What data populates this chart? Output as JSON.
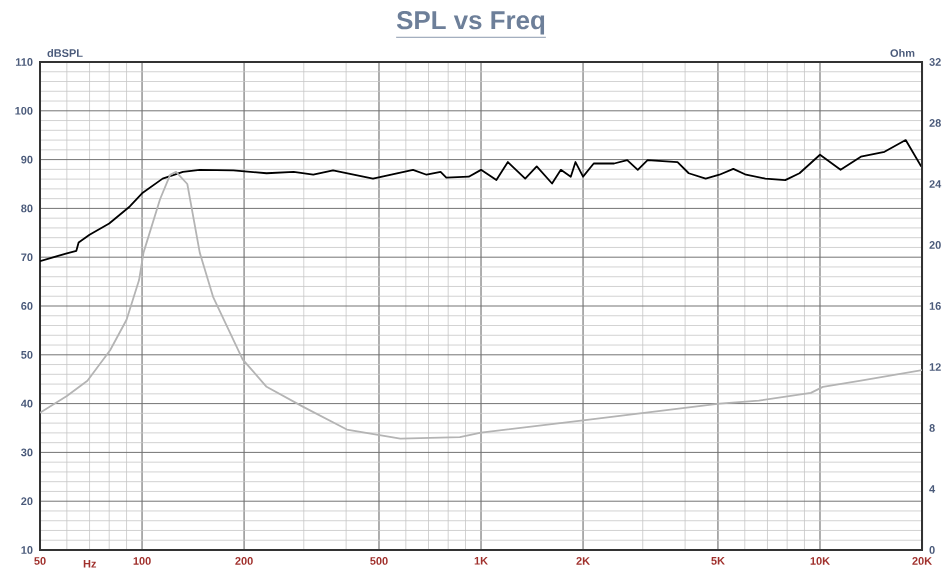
{
  "chart_data": {
    "type": "line",
    "title": "SPL vs Freq",
    "xlabel": "Hz",
    "ylabel": "dBSPL",
    "y2label": "Ohm",
    "log": "x",
    "grid": true,
    "xlim": [
      50,
      20000
    ],
    "ylim": [
      10,
      110
    ],
    "y2lim": [
      0,
      32
    ],
    "xticks": [
      50,
      100,
      200,
      500,
      {
        "value": 1000,
        "label": "1K"
      },
      {
        "value": 2000,
        "label": "2K"
      },
      {
        "value": 5000,
        "label": "5K"
      },
      {
        "value": 10000,
        "label": "10K"
      },
      {
        "value": 20000,
        "label": "20K"
      }
    ],
    "yticks": [
      10,
      20,
      30,
      40,
      50,
      60,
      70,
      80,
      90,
      100,
      110
    ],
    "y2ticks": [
      0,
      4,
      8,
      12,
      16,
      20,
      24,
      28,
      32
    ],
    "series": [
      {
        "color": "#000000",
        "x": [
          50,
          60,
          64,
          65,
          70,
          80,
          92,
          100,
          115,
          132,
          148,
          186,
          233,
          280,
          320,
          366,
          480,
          630,
          691,
          760,
          790,
          920,
          1000,
          1110,
          1200,
          1350,
          1460,
          1620,
          1720,
          1840,
          1900,
          2000,
          2150,
          2470,
          2700,
          2900,
          3100,
          3800,
          4100,
          4600,
          5050,
          5550,
          6050,
          6900,
          7900,
          8700,
          10000,
          11500,
          13200,
          15500,
          17900,
          19900
        ],
        "values": [
          69.2,
          70.8,
          71.3,
          73,
          74.6,
          76.9,
          80.4,
          83.1,
          86.1,
          87.5,
          87.9,
          87.8,
          87.2,
          87.5,
          86.9,
          87.8,
          86.1,
          87.9,
          86.9,
          87.5,
          86.3,
          86.5,
          87.9,
          85.8,
          89.5,
          86.1,
          88.6,
          85.1,
          87.9,
          86.5,
          89.5,
          86.5,
          89.2,
          89.2,
          89.9,
          87.9,
          89.9,
          89.5,
          87.2,
          86.1,
          86.9,
          88.1,
          86.9,
          86.1,
          85.8,
          87.2,
          91,
          87.9,
          90.6,
          91.6,
          94,
          88.6
        ]
      },
      {
        "color": "#b4b4b4",
        "axis": "y2",
        "x": [
          50,
          60,
          69,
          80.5,
          90,
          98,
          101,
          113,
          121,
          126,
          136,
          148,
          162,
          198,
          233,
          298,
          402,
          578,
          866,
          1000,
          2000,
          5050,
          6600,
          9400,
          10200,
          13200,
          20000
        ],
        "values": [
          9,
          10.1,
          11.1,
          13.1,
          15.1,
          17.7,
          19.5,
          23,
          24.6,
          24.8,
          24,
          19.5,
          16.6,
          12.5,
          10.7,
          9.4,
          7.9,
          7.3,
          7.4,
          7.7,
          8.5,
          9.6,
          9.8,
          10.3,
          10.7,
          11.1,
          11.8
        ]
      }
    ]
  }
}
